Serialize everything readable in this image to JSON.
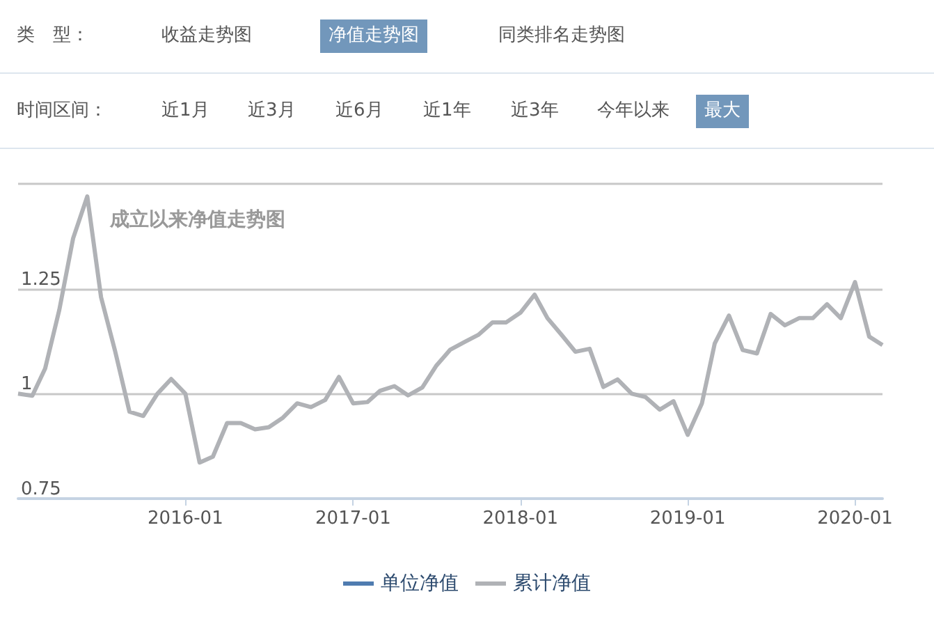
{
  "chart_data": {
    "type": "line",
    "title": "成立以来净值走势图",
    "annotations": [
      "类　型：",
      "收益走势图",
      "净值走势图",
      "同类排名走势图",
      "时间区间：",
      "近1月",
      "近3月",
      "近6月",
      "近1年",
      "近3年",
      "今年以来",
      "最大"
    ],
    "x": [
      "2015-01",
      "2015-02",
      "2015-03",
      "2015-04",
      "2015-05",
      "2015-06",
      "2015-07",
      "2015-08",
      "2015-09",
      "2015-10",
      "2015-11",
      "2015-12",
      "2016-01",
      "2016-02",
      "2016-03",
      "2016-04",
      "2016-05",
      "2016-06",
      "2016-07",
      "2016-08",
      "2016-09",
      "2016-10",
      "2016-11",
      "2016-12",
      "2017-01",
      "2017-02",
      "2017-03",
      "2017-04",
      "2017-05",
      "2017-06",
      "2017-07",
      "2017-08",
      "2017-09",
      "2017-10",
      "2017-11",
      "2017-12",
      "2018-01",
      "2018-02",
      "2018-03",
      "2018-04",
      "2018-05",
      "2018-06",
      "2018-07",
      "2018-08",
      "2018-09",
      "2018-10",
      "2018-11",
      "2018-12",
      "2019-01",
      "2019-02",
      "2019-03",
      "2019-04",
      "2019-05",
      "2019-06",
      "2019-07",
      "2019-08",
      "2019-09",
      "2019-10",
      "2019-11",
      "2019-12",
      "2020-01",
      "2020-02",
      "2020-03"
    ],
    "series": [
      {
        "name": "单位净值",
        "color": "#4f7cb0",
        "values": [
          null,
          null,
          null,
          null,
          null,
          null,
          null,
          null,
          null,
          null,
          null,
          null,
          null,
          null,
          null,
          null,
          null,
          null,
          null,
          null,
          null,
          null,
          null,
          null,
          null,
          null,
          null,
          null,
          null,
          null,
          null,
          null,
          null,
          null,
          null,
          null,
          null,
          null,
          null,
          null,
          null,
          null,
          null,
          null,
          null,
          null,
          null,
          null,
          null,
          null,
          null,
          null,
          null,
          null,
          null,
          null,
          null,
          null,
          null,
          null,
          null,
          null,
          null
        ]
      },
      {
        "name": "累计净值",
        "color": "#b0b2b6",
        "values": [
          1.0,
          0.995,
          1.06,
          1.2,
          1.37,
          1.47,
          1.23,
          1.1,
          0.957,
          0.947,
          1.0,
          1.035,
          1.0,
          0.836,
          0.85,
          0.93,
          0.93,
          0.915,
          0.92,
          0.943,
          0.977,
          0.968,
          0.985,
          1.04,
          0.977,
          0.98,
          1.007,
          1.018,
          0.996,
          1.015,
          1.066,
          1.105,
          1.123,
          1.14,
          1.17,
          1.17,
          1.193,
          1.236,
          1.18,
          1.14,
          1.1,
          1.107,
          1.016,
          1.034,
          1.0,
          0.992,
          0.962,
          0.982,
          0.902,
          0.977,
          1.12,
          1.186,
          1.104,
          1.096,
          1.19,
          1.163,
          1.18,
          1.18,
          1.213,
          1.18,
          1.266,
          1.136,
          1.116
        ]
      }
    ],
    "xlim": [
      "2015-01",
      "2020-03"
    ],
    "xticks": [
      "2016-01",
      "2017-01",
      "2018-01",
      "2019-01",
      "2020-01"
    ],
    "ylim": [
      0.75,
      1.5
    ],
    "yticks": [
      0.75,
      1,
      1.25,
      {
        "value": 1.5,
        "label": null
      }
    ],
    "grid": "y",
    "legend": "bottom",
    "marker": "none",
    "line_style": "solid"
  }
}
